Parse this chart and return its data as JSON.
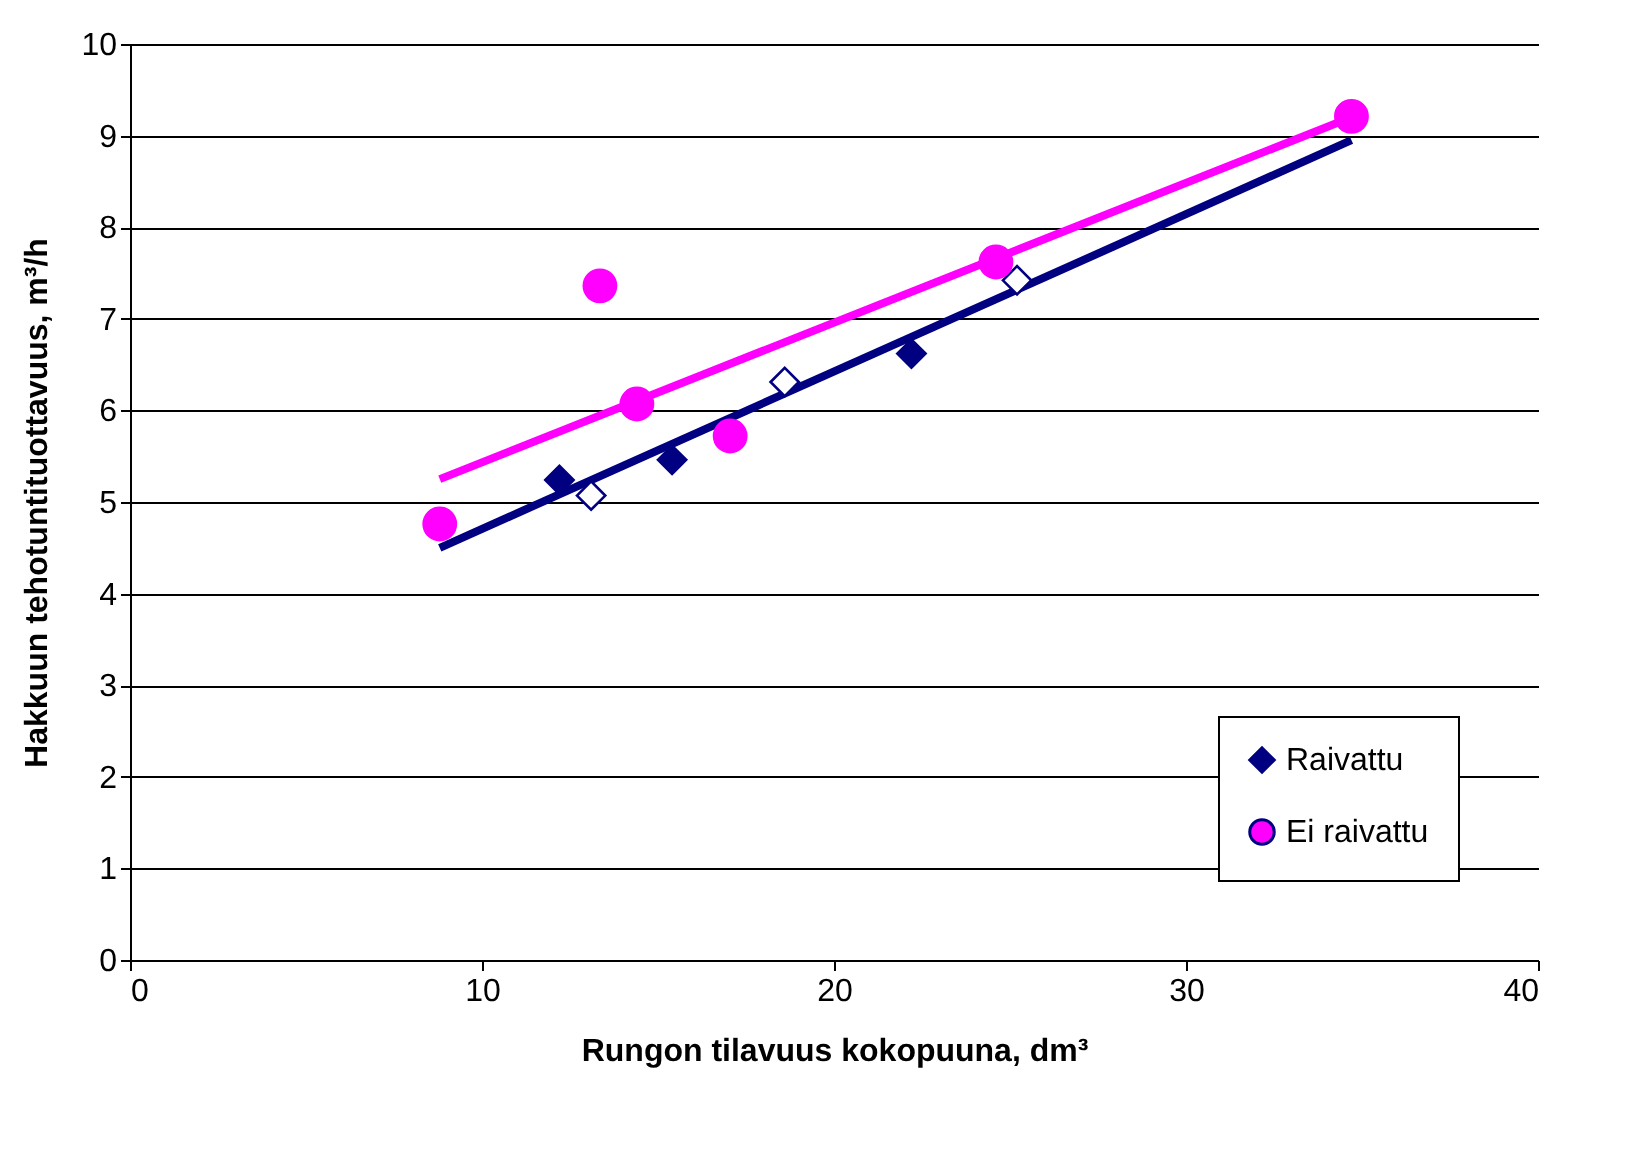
{
  "chart_data": {
    "type": "scatter",
    "xlabel": "Rungon tilavuus kokopuuna, dm³",
    "ylabel": "Hakkuun tehotuntituottavuus, m³/h",
    "xlim": [
      0,
      40
    ],
    "xticks": [
      0,
      10,
      20,
      30,
      40
    ],
    "ylim": [
      0,
      10
    ],
    "yticks": [
      0,
      1,
      2,
      3,
      4,
      5,
      6,
      7,
      8,
      9,
      10
    ],
    "grid": "y",
    "legend": "bottom right",
    "series": [
      {
        "type": "line",
        "color": "#000080",
        "marker": "none",
        "x": [
          8.8,
          34.7
        ],
        "values": [
          4.5,
          8.95
        ]
      },
      {
        "type": "line",
        "color": "#ff00ff",
        "marker": "none",
        "x": [
          8.8,
          34.7
        ],
        "values": [
          5.25,
          9.2
        ]
      },
      {
        "name": "Raivattu",
        "color": "#000080",
        "marker": "diamond",
        "x": [
          12.2,
          15.4,
          22.2
        ],
        "values": [
          5.24,
          5.46,
          6.62
        ]
      },
      {
        "color": "#ffffff",
        "marker": "diamond",
        "x": [
          13.1,
          18.6,
          25.2
        ],
        "values": [
          5.07,
          6.31,
          7.42
        ]
      },
      {
        "name": "Ei raivattu",
        "color": "#ff00ff",
        "marker": "circle",
        "x": [
          8.8,
          13.35,
          14.4,
          17.05,
          24.6,
          34.7
        ],
        "values": [
          4.76,
          7.36,
          6.07,
          5.72,
          7.62,
          9.21
        ]
      }
    ]
  }
}
